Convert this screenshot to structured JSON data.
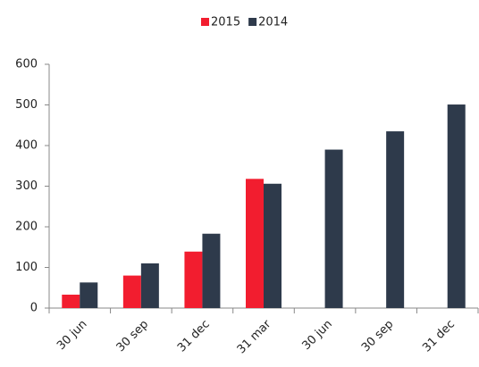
{
  "chart_data": {
    "type": "bar",
    "categories": [
      "30 jun",
      "30 sep",
      "31 dec",
      "31 mar",
      "30 jun",
      "30 sep",
      "31 dec"
    ],
    "series": [
      {
        "name": "2015",
        "color": "#f21d2f",
        "values": [
          33,
          80,
          139,
          318,
          null,
          null,
          null
        ]
      },
      {
        "name": "2014",
        "color": "#2e3a4b",
        "values": [
          63,
          110,
          183,
          306,
          390,
          435,
          501
        ]
      }
    ],
    "ylim": [
      0,
      600
    ],
    "yticks": [
      0,
      100,
      200,
      300,
      400,
      500,
      600
    ],
    "grid": false,
    "legend": "top"
  }
}
